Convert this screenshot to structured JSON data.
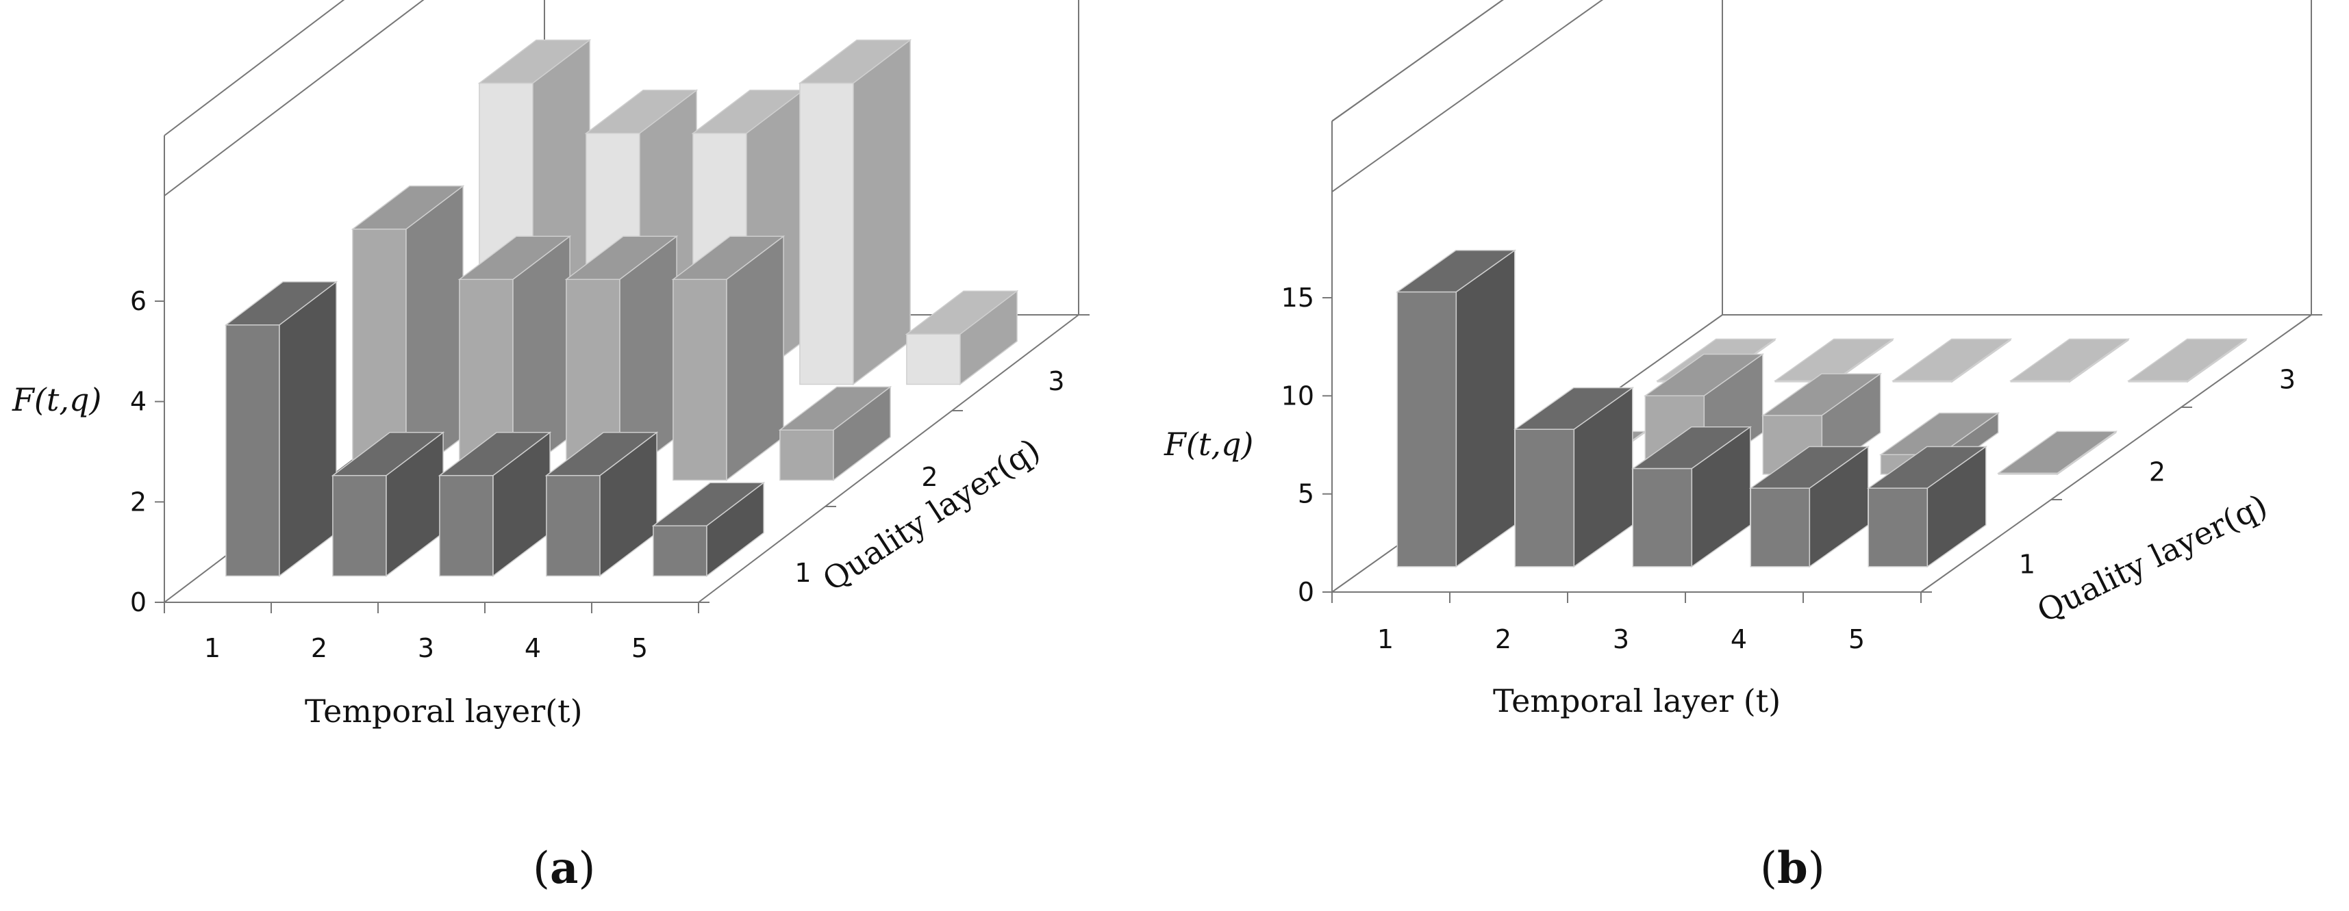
{
  "colors": {
    "q1_front": "#7d7d7d",
    "q1_side": "#555555",
    "q1_top": "#6a6a6a",
    "q2_front": "#a9a9a9",
    "q2_side": "#858585",
    "q2_top": "#9a9a9a",
    "q3_front": "#e2e2e2",
    "q3_side": "#a6a6a6",
    "q3_top": "#bdbdbd",
    "axis": "#777777"
  },
  "chart_data": [
    {
      "type": "bar3d",
      "panel_label": "a",
      "ylabel": "F(t,q)",
      "xlabel": "Temporal layer(t)",
      "zlabel": "Quality layer(q)",
      "ylim": [
        0,
        6
      ],
      "yticks": [
        "0",
        "2",
        "4",
        "6"
      ],
      "categories": [
        "1",
        "2",
        "3",
        "4",
        "5"
      ],
      "depth_categories": [
        "1",
        "2",
        "3"
      ],
      "series": [
        {
          "name": "1",
          "values": [
            5,
            2,
            2,
            2,
            1
          ]
        },
        {
          "name": "2",
          "values": [
            5,
            4,
            4,
            4,
            1
          ]
        },
        {
          "name": "3",
          "values": [
            6,
            5,
            5,
            6,
            1
          ]
        }
      ]
    },
    {
      "type": "bar3d",
      "panel_label": "b",
      "ylabel": "F(t,q)",
      "xlabel": "Temporal layer (t)",
      "zlabel": "Quality layer(q)",
      "ylim": [
        0,
        15
      ],
      "yticks": [
        "0",
        "5",
        "10",
        "15"
      ],
      "categories": [
        "1",
        "2",
        "3",
        "4",
        "5"
      ],
      "depth_categories": [
        "1",
        "2",
        "3"
      ],
      "series": [
        {
          "name": "1",
          "values": [
            14,
            7,
            5,
            4,
            4
          ]
        },
        {
          "name": "2",
          "values": [
            0,
            4,
            3,
            1,
            0
          ]
        },
        {
          "name": "3",
          "values": [
            0,
            0,
            0,
            0,
            0
          ]
        }
      ]
    }
  ]
}
